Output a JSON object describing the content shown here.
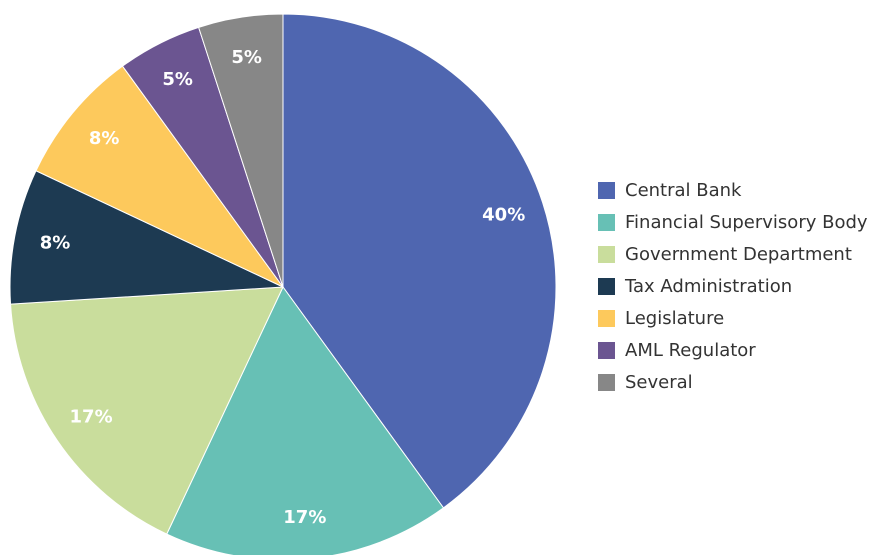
{
  "chart_data": {
    "type": "pie",
    "categories": [
      "Central Bank",
      "Financial Supervisory Body",
      "Government Department",
      "Tax Administration",
      "Legislature",
      "AML Regulator",
      "Several"
    ],
    "values": [
      40,
      17,
      17,
      8,
      8,
      5,
      5
    ],
    "value_labels": [
      "40%",
      "17%",
      "17%",
      "8%",
      "8%",
      "5%",
      "5%"
    ],
    "colors": [
      "#4f66b0",
      "#67c0b5",
      "#c9dd9c",
      "#1d3a52",
      "#fdc95c",
      "#6b5591",
      "#878787"
    ],
    "legend": "right"
  }
}
